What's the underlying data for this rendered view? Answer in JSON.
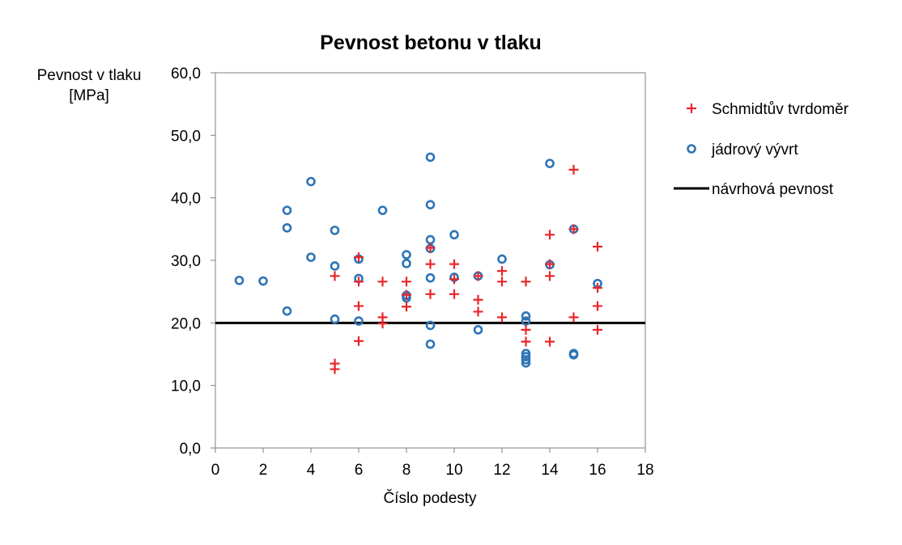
{
  "chart_data": {
    "type": "scatter",
    "title": "Pevnost betonu v tlaku",
    "xlabel": "Číslo podesty",
    "ylabel": [
      "Pevnost v tlaku",
      "[MPa]"
    ],
    "xlim": [
      0,
      18
    ],
    "ylim": [
      0,
      60
    ],
    "x_ticks": [
      "0",
      "2",
      "4",
      "6",
      "8",
      "10",
      "12",
      "14",
      "16",
      "18"
    ],
    "y_ticks": [
      "0,0",
      "10,0",
      "20,0",
      "30,0",
      "40,0",
      "50,0",
      "60,0"
    ],
    "grid": false,
    "legend_position": "right",
    "series": [
      {
        "name": "Schmidtův tvrdoměr",
        "marker": "plus",
        "color": "#e8262b",
        "points": [
          [
            5,
            27.5
          ],
          [
            5,
            13.5
          ],
          [
            5,
            12.6
          ],
          [
            6,
            30.5
          ],
          [
            6,
            26.6
          ],
          [
            6,
            22.7
          ],
          [
            6,
            17.1
          ],
          [
            7,
            26.6
          ],
          [
            7,
            20.9
          ],
          [
            7,
            19.9
          ],
          [
            8,
            26.6
          ],
          [
            8,
            24.5
          ],
          [
            8,
            22.6
          ],
          [
            9,
            32.0
          ],
          [
            9,
            29.4
          ],
          [
            9,
            24.6
          ],
          [
            10,
            29.4
          ],
          [
            10,
            27.0
          ],
          [
            10,
            24.6
          ],
          [
            11,
            27.5
          ],
          [
            11,
            23.7
          ],
          [
            11,
            21.8
          ],
          [
            12,
            28.3
          ],
          [
            12,
            26.6
          ],
          [
            12,
            20.9
          ],
          [
            13,
            26.6
          ],
          [
            13,
            18.9
          ],
          [
            13,
            17.0
          ],
          [
            14,
            34.1
          ],
          [
            14,
            29.4
          ],
          [
            14,
            27.5
          ],
          [
            14,
            17.0
          ],
          [
            15,
            44.5
          ],
          [
            15,
            35.0
          ],
          [
            15,
            20.9
          ],
          [
            16,
            32.2
          ],
          [
            16,
            25.6
          ],
          [
            16,
            22.7
          ],
          [
            16,
            18.9
          ]
        ]
      },
      {
        "name": "jádrový vývrt",
        "marker": "circle",
        "color": "#2e75b6",
        "points": [
          [
            1,
            26.8
          ],
          [
            2,
            26.7
          ],
          [
            3,
            38.0
          ],
          [
            3,
            35.2
          ],
          [
            3,
            21.9
          ],
          [
            4,
            42.6
          ],
          [
            4,
            30.5
          ],
          [
            5,
            34.8
          ],
          [
            5,
            29.1
          ],
          [
            5,
            20.6
          ],
          [
            6,
            30.2
          ],
          [
            6,
            27.1
          ],
          [
            6,
            20.3
          ],
          [
            7,
            38.0
          ],
          [
            8,
            30.9
          ],
          [
            8,
            29.5
          ],
          [
            8,
            24.4
          ],
          [
            8,
            24.0
          ],
          [
            9,
            46.5
          ],
          [
            9,
            38.9
          ],
          [
            9,
            33.3
          ],
          [
            9,
            31.9
          ],
          [
            9,
            27.2
          ],
          [
            9,
            19.6
          ],
          [
            9,
            16.6
          ],
          [
            10,
            34.1
          ],
          [
            10,
            27.3
          ],
          [
            11,
            27.5
          ],
          [
            11,
            18.9
          ],
          [
            12,
            30.2
          ],
          [
            13,
            21.1
          ],
          [
            13,
            20.3
          ],
          [
            13,
            15.1
          ],
          [
            13,
            14.6
          ],
          [
            13,
            14.1
          ],
          [
            13,
            13.6
          ],
          [
            14,
            45.5
          ],
          [
            14,
            29.3
          ],
          [
            15,
            35.0
          ],
          [
            15,
            15.1
          ],
          [
            15,
            14.9
          ],
          [
            16,
            26.3
          ]
        ]
      },
      {
        "name": "návrhová pevnost",
        "marker": "line",
        "color": "#000000",
        "y": 20
      }
    ]
  }
}
